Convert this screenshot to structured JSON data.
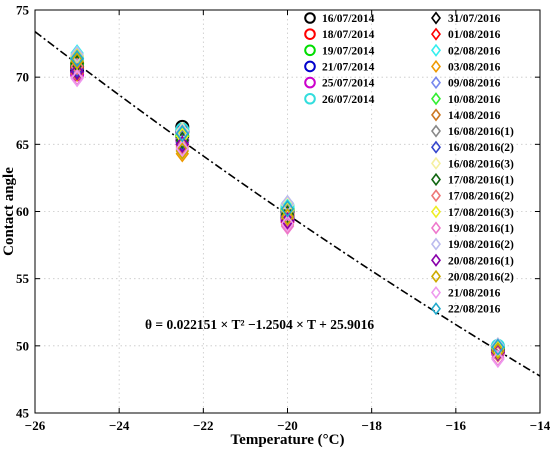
{
  "chart_data": {
    "type": "scatter",
    "xlabel": "Temperature (°C)",
    "ylabel": "Contact angle",
    "xlim": [
      -26,
      -14
    ],
    "ylim": [
      45,
      75
    ],
    "xticks": [
      -26,
      -24,
      -22,
      -20,
      -18,
      -16,
      -14
    ],
    "yticks": [
      45,
      50,
      55,
      60,
      65,
      70,
      75
    ],
    "grid": true,
    "legend_position": "top-right",
    "fit": {
      "equation_label": "θ = 0.022151 × T² −1.2504 × T + 25.9016",
      "a": 0.022151,
      "b": -1.2504,
      "c": 25.9016,
      "style": "dash-dot",
      "color": "#000000",
      "x_range": [
        -26,
        -14
      ]
    },
    "series": [
      {
        "name": "16/07/2014",
        "marker": "circle",
        "color": "#000000",
        "points": [
          [
            -25,
            70.8
          ],
          [
            -22.5,
            66.3
          ],
          [
            -20,
            60.0
          ],
          [
            -15,
            49.8
          ]
        ]
      },
      {
        "name": "18/07/2014",
        "marker": "circle",
        "color": "#ff0000",
        "points": [
          [
            -25,
            70.6
          ],
          [
            -22.5,
            65.9
          ],
          [
            -20,
            59.7
          ],
          [
            -15,
            49.7
          ]
        ]
      },
      {
        "name": "19/07/2014",
        "marker": "circle",
        "color": "#00dd00",
        "points": [
          [
            -25,
            71.0
          ],
          [
            -22.5,
            65.6
          ],
          [
            -20,
            60.2
          ],
          [
            -15,
            49.9
          ]
        ]
      },
      {
        "name": "21/07/2014",
        "marker": "circle",
        "color": "#0000cc",
        "points": [
          [
            -25,
            70.4
          ],
          [
            -22.5,
            66.0
          ],
          [
            -20,
            59.5
          ],
          [
            -15,
            49.6
          ]
        ]
      },
      {
        "name": "25/07/2014",
        "marker": "circle",
        "color": "#cc00cc",
        "points": [
          [
            -25,
            70.2
          ],
          [
            -22.5,
            65.3
          ],
          [
            -20,
            59.3
          ],
          [
            -15,
            49.5
          ]
        ]
      },
      {
        "name": "26/07/2014",
        "marker": "circle",
        "color": "#33dddd",
        "points": [
          [
            -25,
            71.4
          ],
          [
            -22.5,
            66.1
          ],
          [
            -20,
            60.4
          ],
          [
            -15,
            50.0
          ]
        ]
      },
      {
        "name": "31/07/2016",
        "marker": "diamond",
        "color": "#000000",
        "points": [
          [
            -25,
            70.5
          ],
          [
            -22.5,
            65.5
          ],
          [
            -20,
            59.6
          ],
          [
            -15,
            49.5
          ]
        ]
      },
      {
        "name": "01/08/2016",
        "marker": "diamond",
        "color": "#ff0000",
        "points": [
          [
            -25,
            71.1
          ],
          [
            -22.5,
            65.0
          ],
          [
            -20,
            59.2
          ],
          [
            -15,
            49.6
          ]
        ]
      },
      {
        "name": "02/08/2016",
        "marker": "diamond",
        "color": "#33eeee",
        "points": [
          [
            -25,
            71.8
          ],
          [
            -22.5,
            65.8
          ],
          [
            -20,
            60.3
          ],
          [
            -15,
            49.9
          ]
        ]
      },
      {
        "name": "03/08/2016",
        "marker": "diamond",
        "color": "#ee9900",
        "points": [
          [
            -25,
            70.3
          ],
          [
            -22.5,
            64.3
          ],
          [
            -20,
            59.0
          ],
          [
            -15,
            49.4
          ]
        ]
      },
      {
        "name": "09/08/2016",
        "marker": "diamond",
        "color": "#7788ee",
        "points": [
          [
            -25,
            71.3
          ],
          [
            -22.5,
            65.4
          ],
          [
            -20,
            60.0
          ],
          [
            -15,
            49.7
          ]
        ]
      },
      {
        "name": "10/08/2016",
        "marker": "diamond",
        "color": "#33ee33",
        "points": [
          [
            -25,
            71.2
          ],
          [
            -22.5,
            65.7
          ],
          [
            -20,
            59.8
          ],
          [
            -15,
            49.8
          ]
        ]
      },
      {
        "name": "14/08/2016",
        "marker": "diamond",
        "color": "#cc7722",
        "points": [
          [
            -25,
            70.7
          ],
          [
            -22.5,
            64.8
          ],
          [
            -20,
            59.4
          ],
          [
            -15,
            49.6
          ]
        ]
      },
      {
        "name": "16/08/2016(1)",
        "marker": "diamond",
        "color": "#888888",
        "points": [
          [
            -25,
            70.9
          ],
          [
            -22.5,
            65.2
          ],
          [
            -20,
            59.9
          ],
          [
            -15,
            49.7
          ]
        ]
      },
      {
        "name": "16/08/2016(2)",
        "marker": "diamond",
        "color": "#3344cc",
        "points": [
          [
            -25,
            70.6
          ],
          [
            -22.5,
            65.1
          ],
          [
            -20,
            59.7
          ],
          [
            -15,
            49.5
          ]
        ]
      },
      {
        "name": "16/08/2016(3)",
        "marker": "diamond",
        "color": "#f5f0a0",
        "points": [
          [
            -25,
            71.5
          ],
          [
            -22.5,
            66.0
          ],
          [
            -20,
            60.5
          ],
          [
            -15,
            50.0
          ]
        ]
      },
      {
        "name": "17/08/2016(1)",
        "marker": "diamond",
        "color": "#116611",
        "points": [
          [
            -25,
            71.0
          ],
          [
            -22.5,
            65.3
          ],
          [
            -20,
            59.8
          ],
          [
            -15,
            49.6
          ]
        ]
      },
      {
        "name": "17/08/2016(2)",
        "marker": "diamond",
        "color": "#ee7777",
        "points": [
          [
            -25,
            70.8
          ],
          [
            -22.5,
            64.9
          ],
          [
            -20,
            59.5
          ],
          [
            -15,
            49.4
          ]
        ]
      },
      {
        "name": "17/08/2016(3)",
        "marker": "diamond",
        "color": "#eeee22",
        "points": [
          [
            -25,
            71.6
          ],
          [
            -22.5,
            65.6
          ],
          [
            -20,
            60.1
          ],
          [
            -15,
            49.8
          ]
        ]
      },
      {
        "name": "19/08/2016(1)",
        "marker": "diamond",
        "color": "#ee77cc",
        "points": [
          [
            -25,
            70.0
          ],
          [
            -22.5,
            64.6
          ],
          [
            -20,
            58.9
          ],
          [
            -15,
            49.1
          ]
        ]
      },
      {
        "name": "19/08/2016(2)",
        "marker": "diamond",
        "color": "#bbbbee",
        "points": [
          [
            -25,
            71.7
          ],
          [
            -22.5,
            65.9
          ],
          [
            -20,
            60.6
          ],
          [
            -15,
            50.0
          ]
        ]
      },
      {
        "name": "20/08/2016(1)",
        "marker": "diamond",
        "color": "#8800aa",
        "points": [
          [
            -25,
            70.4
          ],
          [
            -22.5,
            65.0
          ],
          [
            -20,
            59.3
          ],
          [
            -15,
            49.5
          ]
        ]
      },
      {
        "name": "20/08/2016(2)",
        "marker": "diamond",
        "color": "#ccaa00",
        "points": [
          [
            -25,
            71.2
          ],
          [
            -22.5,
            64.5
          ],
          [
            -20,
            59.6
          ],
          [
            -15,
            49.6
          ]
        ]
      },
      {
        "name": "21/08/2016",
        "marker": "diamond",
        "color": "#ee99ee",
        "points": [
          [
            -25,
            69.9
          ],
          [
            -22.5,
            64.7
          ],
          [
            -20,
            59.1
          ],
          [
            -15,
            49.0
          ]
        ]
      },
      {
        "name": "22/08/2016",
        "marker": "diamond",
        "color": "#22aacc",
        "points": [
          [
            -25,
            71.4
          ],
          [
            -22.5,
            65.8
          ],
          [
            -20,
            60.2
          ],
          [
            -15,
            49.9
          ]
        ]
      }
    ]
  }
}
